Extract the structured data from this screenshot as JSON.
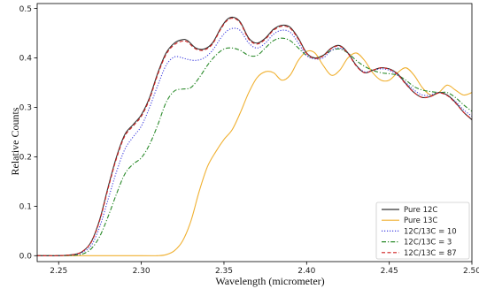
{
  "chart_data": {
    "type": "line",
    "title": "",
    "xlabel": "Wavelength (micrometer)",
    "ylabel": "Relative Counts",
    "xlim": [
      2.237,
      2.5
    ],
    "ylim": [
      -0.012,
      0.51
    ],
    "xticks": [
      "2.25",
      "2.30",
      "2.35",
      "2.40",
      "2.45",
      "2.50"
    ],
    "xtick_values": [
      2.25,
      2.3,
      2.35,
      2.4,
      2.45,
      2.5
    ],
    "yticks": [
      "0.0",
      "0.1",
      "0.2",
      "0.3",
      "0.4",
      "0.5"
    ],
    "ytick_values": [
      0.0,
      0.1,
      0.2,
      0.3,
      0.4,
      0.5
    ],
    "grid": false,
    "legend_position": "bottom-right",
    "series": [
      {
        "name": "Pure 12C",
        "color": "#333333",
        "linestyle": "solid",
        "x": [
          2.237,
          2.25,
          2.26,
          2.265,
          2.27,
          2.275,
          2.28,
          2.285,
          2.29,
          2.295,
          2.3,
          2.305,
          2.31,
          2.315,
          2.32,
          2.325,
          2.328,
          2.333,
          2.338,
          2.343,
          2.348,
          2.352,
          2.356,
          2.36,
          2.365,
          2.37,
          2.375,
          2.38,
          2.385,
          2.39,
          2.395,
          2.4,
          2.405,
          2.41,
          2.415,
          2.42,
          2.425,
          2.43,
          2.435,
          2.44,
          2.445,
          2.45,
          2.455,
          2.46,
          2.465,
          2.47,
          2.475,
          2.48,
          2.485,
          2.49,
          2.495,
          2.5
        ],
        "y": [
          0.0,
          0.0,
          0.003,
          0.01,
          0.03,
          0.075,
          0.14,
          0.2,
          0.245,
          0.265,
          0.285,
          0.32,
          0.37,
          0.41,
          0.43,
          0.437,
          0.435,
          0.42,
          0.418,
          0.43,
          0.46,
          0.478,
          0.482,
          0.472,
          0.44,
          0.43,
          0.44,
          0.458,
          0.466,
          0.462,
          0.44,
          0.41,
          0.4,
          0.405,
          0.42,
          0.425,
          0.41,
          0.385,
          0.37,
          0.375,
          0.38,
          0.378,
          0.368,
          0.348,
          0.33,
          0.32,
          0.322,
          0.33,
          0.325,
          0.31,
          0.29,
          0.275
        ]
      },
      {
        "name": "Pure 13C",
        "color": "#f0b030",
        "linestyle": "solid",
        "x": [
          2.237,
          2.3,
          2.31,
          2.315,
          2.32,
          2.325,
          2.33,
          2.335,
          2.34,
          2.345,
          2.35,
          2.355,
          2.36,
          2.365,
          2.37,
          2.375,
          2.38,
          2.385,
          2.39,
          2.395,
          2.4,
          2.405,
          2.41,
          2.415,
          2.42,
          2.425,
          2.43,
          2.435,
          2.44,
          2.445,
          2.45,
          2.455,
          2.46,
          2.465,
          2.47,
          2.475,
          2.48,
          2.485,
          2.49,
          2.495,
          2.5
        ],
        "y": [
          0.0,
          0.0,
          0.0,
          0.002,
          0.01,
          0.03,
          0.07,
          0.13,
          0.18,
          0.21,
          0.235,
          0.255,
          0.29,
          0.33,
          0.36,
          0.372,
          0.37,
          0.355,
          0.365,
          0.395,
          0.413,
          0.41,
          0.385,
          0.365,
          0.375,
          0.4,
          0.41,
          0.395,
          0.37,
          0.355,
          0.355,
          0.37,
          0.38,
          0.365,
          0.34,
          0.325,
          0.33,
          0.345,
          0.335,
          0.325,
          0.33
        ]
      },
      {
        "name": "12C/13C = 10",
        "color": "#4040e0",
        "linestyle": "dotted",
        "x": [
          2.237,
          2.25,
          2.26,
          2.265,
          2.27,
          2.275,
          2.28,
          2.285,
          2.29,
          2.295,
          2.3,
          2.305,
          2.31,
          2.315,
          2.32,
          2.325,
          2.328,
          2.333,
          2.338,
          2.343,
          2.348,
          2.352,
          2.356,
          2.36,
          2.365,
          2.37,
          2.375,
          2.38,
          2.385,
          2.39,
          2.395,
          2.4,
          2.405,
          2.41,
          2.415,
          2.42,
          2.425,
          2.43,
          2.435,
          2.44,
          2.445,
          2.45,
          2.455,
          2.46,
          2.465,
          2.47,
          2.475,
          2.48,
          2.485,
          2.49,
          2.495,
          2.5
        ],
        "y": [
          0.0,
          0.0,
          0.002,
          0.008,
          0.022,
          0.06,
          0.115,
          0.17,
          0.215,
          0.24,
          0.262,
          0.3,
          0.345,
          0.385,
          0.402,
          0.4,
          0.397,
          0.395,
          0.4,
          0.415,
          0.44,
          0.455,
          0.46,
          0.455,
          0.43,
          0.42,
          0.43,
          0.448,
          0.456,
          0.452,
          0.43,
          0.405,
          0.398,
          0.4,
          0.415,
          0.42,
          0.41,
          0.385,
          0.372,
          0.375,
          0.378,
          0.375,
          0.365,
          0.35,
          0.335,
          0.325,
          0.325,
          0.33,
          0.325,
          0.312,
          0.295,
          0.282
        ]
      },
      {
        "name": "12C/13C = 3",
        "color": "#2a8a2a",
        "linestyle": "dashdot",
        "x": [
          2.237,
          2.25,
          2.26,
          2.265,
          2.27,
          2.275,
          2.28,
          2.285,
          2.29,
          2.295,
          2.3,
          2.305,
          2.31,
          2.315,
          2.32,
          2.325,
          2.33,
          2.335,
          2.34,
          2.345,
          2.35,
          2.355,
          2.36,
          2.365,
          2.37,
          2.375,
          2.38,
          2.385,
          2.39,
          2.395,
          2.4,
          2.405,
          2.41,
          2.415,
          2.42,
          2.425,
          2.43,
          2.435,
          2.44,
          2.445,
          2.45,
          2.455,
          2.46,
          2.465,
          2.47,
          2.475,
          2.48,
          2.485,
          2.49,
          2.495,
          2.5
        ],
        "y": [
          0.0,
          0.0,
          0.001,
          0.004,
          0.015,
          0.04,
          0.08,
          0.125,
          0.165,
          0.185,
          0.198,
          0.225,
          0.265,
          0.31,
          0.333,
          0.337,
          0.34,
          0.36,
          0.385,
          0.405,
          0.418,
          0.42,
          0.415,
          0.405,
          0.405,
          0.42,
          0.435,
          0.44,
          0.435,
          0.42,
          0.405,
          0.4,
          0.405,
          0.415,
          0.418,
          0.41,
          0.395,
          0.383,
          0.375,
          0.37,
          0.368,
          0.365,
          0.355,
          0.342,
          0.335,
          0.332,
          0.33,
          0.33,
          0.32,
          0.305,
          0.292
        ]
      },
      {
        "name": "12C/13C = 87",
        "color": "#d02020",
        "linestyle": "dashed",
        "x": [
          2.237,
          2.25,
          2.26,
          2.265,
          2.27,
          2.275,
          2.28,
          2.285,
          2.29,
          2.295,
          2.3,
          2.305,
          2.31,
          2.315,
          2.32,
          2.325,
          2.328,
          2.333,
          2.338,
          2.343,
          2.348,
          2.352,
          2.356,
          2.36,
          2.365,
          2.37,
          2.375,
          2.38,
          2.385,
          2.39,
          2.395,
          2.4,
          2.405,
          2.41,
          2.415,
          2.42,
          2.425,
          2.43,
          2.435,
          2.44,
          2.445,
          2.45,
          2.455,
          2.46,
          2.465,
          2.47,
          2.475,
          2.48,
          2.485,
          2.49,
          2.495,
          2.5
        ],
        "y": [
          0.0,
          0.0,
          0.003,
          0.01,
          0.029,
          0.073,
          0.137,
          0.197,
          0.242,
          0.262,
          0.282,
          0.317,
          0.367,
          0.407,
          0.427,
          0.434,
          0.432,
          0.418,
          0.416,
          0.428,
          0.458,
          0.476,
          0.48,
          0.47,
          0.438,
          0.428,
          0.438,
          0.456,
          0.464,
          0.46,
          0.438,
          0.409,
          0.399,
          0.404,
          0.419,
          0.424,
          0.409,
          0.384,
          0.37,
          0.375,
          0.38,
          0.377,
          0.367,
          0.347,
          0.33,
          0.32,
          0.322,
          0.329,
          0.324,
          0.309,
          0.29,
          0.276
        ]
      }
    ]
  }
}
